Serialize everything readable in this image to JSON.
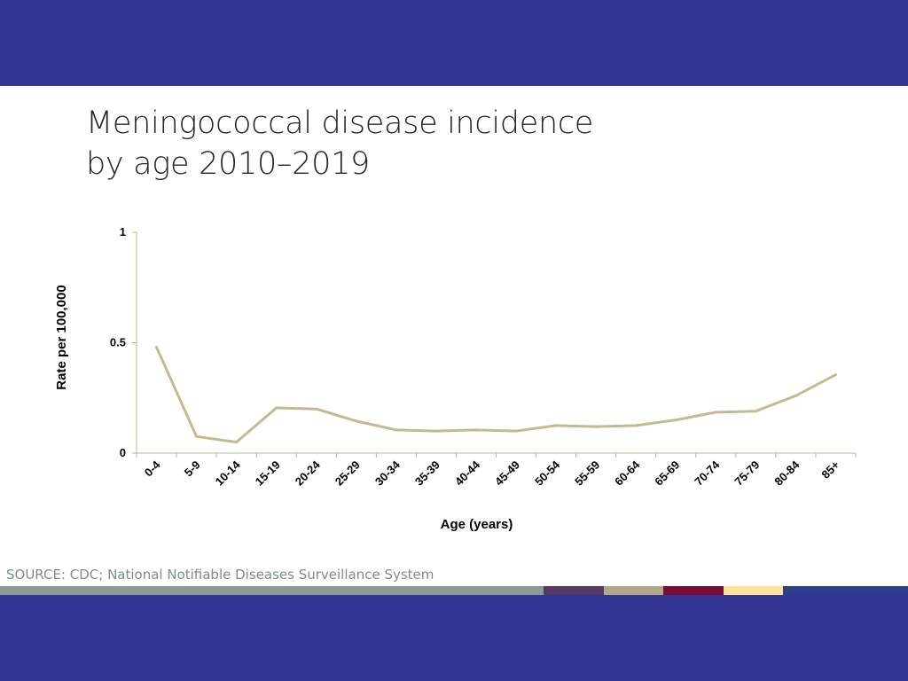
{
  "colors": {
    "band": "#343696",
    "series": "#c2bb8f",
    "axis": "#a9c08f",
    "stripes": [
      "#8c9a97",
      "#523767",
      "#b0a888",
      "#7b0c35",
      "#fde29a",
      "#2e3f90"
    ]
  },
  "slide": {
    "title_line1": "Meningococcal disease incidence",
    "title_line2": "by age 2010–2019",
    "source": "SOURCE: CDC; National Notifiable Diseases Surveillance System"
  },
  "chart_data": {
    "type": "line",
    "title": "",
    "xlabel": "Age (years)",
    "ylabel": "Rate per 100,000",
    "ylim": [
      0,
      1
    ],
    "yticks": [
      "0",
      "0.5",
      "1"
    ],
    "categories": [
      "0-4",
      "5-9",
      "10-14",
      "15-19",
      "20-24",
      "25-29",
      "30-34",
      "35-39",
      "40-44",
      "45-49",
      "50-54",
      "55-59",
      "60-64",
      "65-69",
      "70-74",
      "75-79",
      "80-84",
      "85+"
    ],
    "series": [
      {
        "values": [
          0.48,
          0.075,
          0.05,
          0.205,
          0.2,
          0.145,
          0.105,
          0.1,
          0.105,
          0.1,
          0.125,
          0.12,
          0.125,
          0.15,
          0.185,
          0.19,
          0.26,
          0.355
        ]
      }
    ],
    "grid": false,
    "legend": "none"
  }
}
